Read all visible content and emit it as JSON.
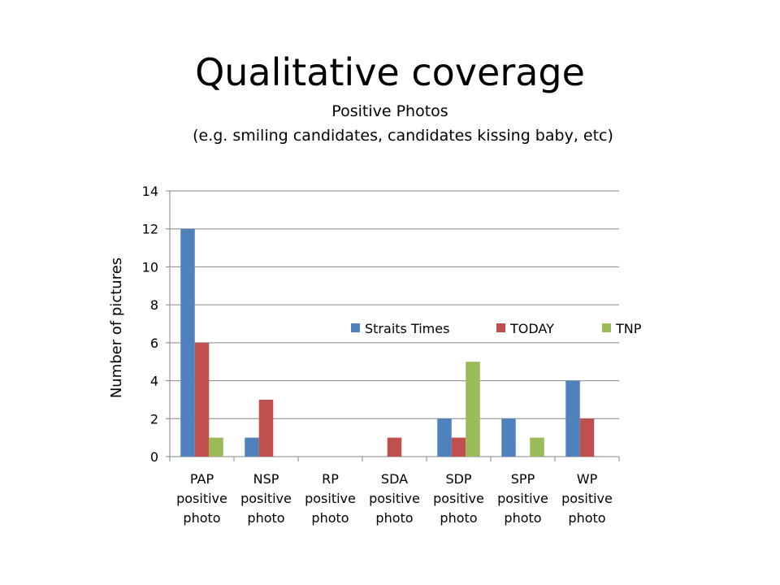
{
  "slide": {
    "title": "Qualitative coverage",
    "subtitle_line1": "Positive Photos",
    "subtitle_line2": "(e.g. smiling candidates, candidates kissing baby, etc)"
  },
  "chart_data": {
    "type": "bar",
    "ylabel": "Number of pictures",
    "xlabel": "",
    "ylim": [
      0,
      14
    ],
    "yticks": [
      0,
      2,
      4,
      6,
      8,
      10,
      12,
      14
    ],
    "grid": true,
    "legend_position": "center-right",
    "categories": [
      [
        "PAP",
        "positive",
        "photo"
      ],
      [
        "NSP",
        "positive",
        "photo"
      ],
      [
        "RP",
        "positive",
        "photo"
      ],
      [
        "SDA",
        "positive",
        "photo"
      ],
      [
        "SDP",
        "positive",
        "photo"
      ],
      [
        "SPP",
        "positive",
        "photo"
      ],
      [
        "WP",
        "positive",
        "photo"
      ]
    ],
    "series": [
      {
        "name": "Straits Times",
        "color": "#4F81BD",
        "values": [
          12,
          1,
          0,
          0,
          2,
          2,
          4
        ]
      },
      {
        "name": "TODAY",
        "color": "#C0504D",
        "values": [
          6,
          3,
          0,
          1,
          1,
          0,
          2
        ]
      },
      {
        "name": "TNP",
        "color": "#9BBB59",
        "values": [
          1,
          0,
          0,
          0,
          5,
          1,
          0
        ]
      }
    ]
  }
}
